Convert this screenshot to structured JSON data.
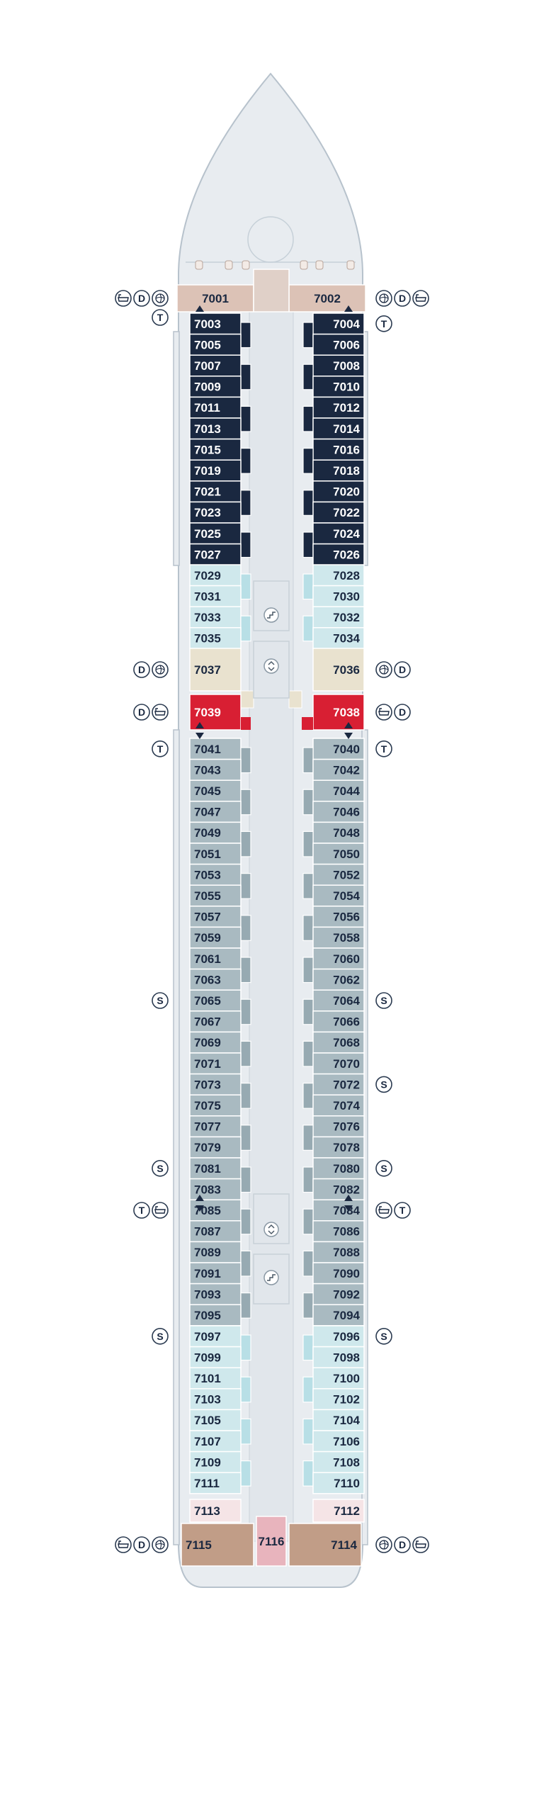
{
  "colors": {
    "hull": "#e8ecf0",
    "hull_stroke": "#b7c2cc",
    "navy": "#1a2840",
    "teal": "#cfe8ec",
    "grey": "#a9bac1",
    "beige": "#e9e2cf",
    "red": "#d81f33",
    "tan": "#c19d87",
    "pink_light": "#f5e4e6",
    "pink": "#e8b4bd",
    "suite_top": "#dcc2b6"
  },
  "cabins": {
    "top_left": "7001",
    "top_right": "7002",
    "navy_left": [
      "7003",
      "7005",
      "7007",
      "7009",
      "7011",
      "7013",
      "7015",
      "7019",
      "7021",
      "7023",
      "7025",
      "7027"
    ],
    "navy_right": [
      "7004",
      "7006",
      "7008",
      "7010",
      "7012",
      "7014",
      "7016",
      "7018",
      "7020",
      "7022",
      "7024",
      "7026"
    ],
    "teal_top_left": [
      "7029",
      "7031",
      "7033",
      "7035"
    ],
    "teal_top_right": [
      "7028",
      "7030",
      "7032",
      "7034"
    ],
    "beige_left": "7037",
    "beige_right": "7036",
    "red_left": "7039",
    "red_right": "7038",
    "grey_left": [
      "7041",
      "7043",
      "7045",
      "7047",
      "7049",
      "7051",
      "7053",
      "7055",
      "7057",
      "7059",
      "7061",
      "7063",
      "7065",
      "7067",
      "7069",
      "7071",
      "7073",
      "7075",
      "7077",
      "7079",
      "7081",
      "7083",
      "7085",
      "7087",
      "7089",
      "7091",
      "7093",
      "7095"
    ],
    "grey_right": [
      "7040",
      "7042",
      "7044",
      "7046",
      "7048",
      "7050",
      "7052",
      "7054",
      "7056",
      "7058",
      "7060",
      "7062",
      "7064",
      "7066",
      "7068",
      "7070",
      "7072",
      "7074",
      "7076",
      "7078",
      "7080",
      "7082",
      "7084",
      "7086",
      "7088",
      "7090",
      "7092",
      "7094"
    ],
    "teal_bottom_left": [
      "7097",
      "7099",
      "7101",
      "7103",
      "7105",
      "7107",
      "7109",
      "7111"
    ],
    "teal_bottom_right": [
      "7096",
      "7098",
      "7100",
      "7102",
      "7104",
      "7106",
      "7108",
      "7110"
    ],
    "pink_left": "7113",
    "pink_right": "7112",
    "aft_left": "7115",
    "aft_center": "7116",
    "aft_right": "7114"
  },
  "legend": {
    "letters": {
      "t": "T",
      "d": "D",
      "s": "S"
    },
    "icons": [
      "bathtub-icon",
      "shower-icon",
      "accessible-icon",
      "stairs-icon",
      "elevator-icon"
    ],
    "rows": [
      {
        "side": "left",
        "row": "top_suite",
        "symbols": [
          "bath",
          "D",
          "shower"
        ]
      },
      {
        "side": "left",
        "row": "7003",
        "symbols": [
          "T"
        ]
      },
      {
        "side": "right",
        "row": "top_suite",
        "symbols": [
          "shower",
          "D",
          "bath"
        ]
      },
      {
        "side": "right",
        "row": "7004",
        "symbols": [
          "T"
        ]
      },
      {
        "side": "left",
        "row": "7037",
        "symbols": [
          "D",
          "shower"
        ]
      },
      {
        "side": "right",
        "row": "7036",
        "symbols": [
          "shower",
          "D"
        ]
      },
      {
        "side": "left",
        "row": "7039",
        "symbols": [
          "D",
          "bath"
        ]
      },
      {
        "side": "right",
        "row": "7038",
        "symbols": [
          "bath",
          "D"
        ]
      },
      {
        "side": "left",
        "row": "7041",
        "symbols": [
          "T"
        ]
      },
      {
        "side": "right",
        "row": "7040",
        "symbols": [
          "T"
        ]
      },
      {
        "side": "left",
        "row": "7065",
        "symbols": [
          "S"
        ]
      },
      {
        "side": "right",
        "row": "7064",
        "symbols": [
          "S"
        ]
      },
      {
        "side": "right",
        "row": "7072",
        "symbols": [
          "S"
        ]
      },
      {
        "side": "left",
        "row": "7081",
        "symbols": [
          "S"
        ]
      },
      {
        "side": "right",
        "row": "7080",
        "symbols": [
          "S"
        ]
      },
      {
        "side": "left",
        "row": "7085",
        "symbols": [
          "T",
          "bath"
        ]
      },
      {
        "side": "right",
        "row": "7084",
        "symbols": [
          "bath",
          "T"
        ]
      },
      {
        "side": "left",
        "row": "7097",
        "symbols": [
          "S"
        ]
      },
      {
        "side": "right",
        "row": "7096",
        "symbols": [
          "S"
        ]
      },
      {
        "side": "left",
        "row": "7115",
        "symbols": [
          "bath",
          "D",
          "shower"
        ]
      },
      {
        "side": "right",
        "row": "7114",
        "symbols": [
          "shower",
          "D",
          "bath"
        ]
      }
    ]
  }
}
